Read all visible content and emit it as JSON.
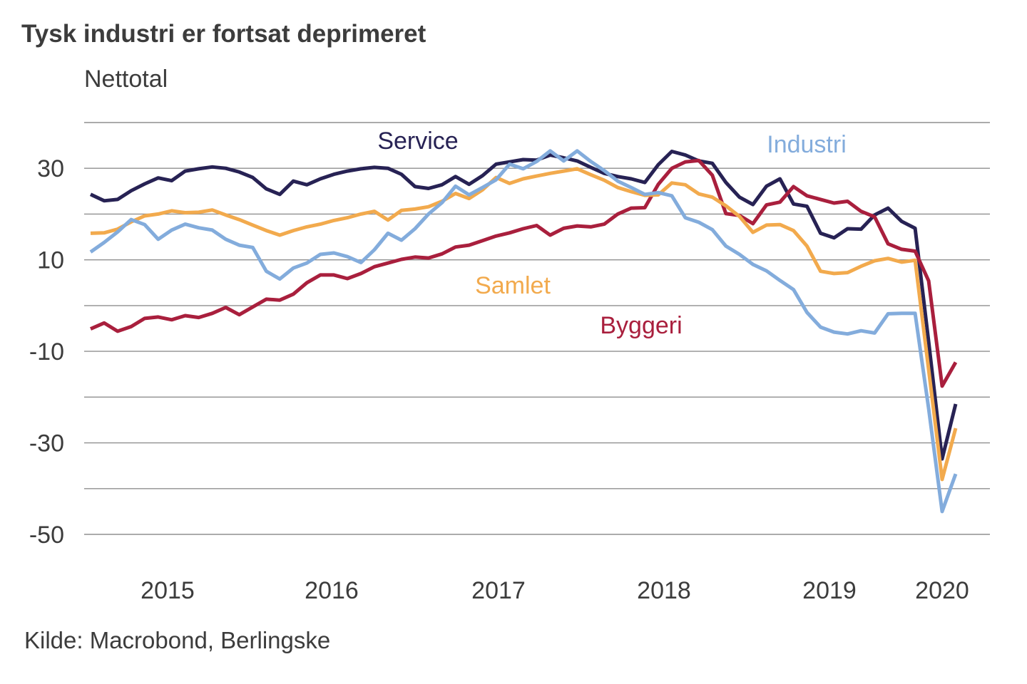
{
  "title": "Tysk industri er fortsat deprimeret",
  "subtitle": "Nettotal",
  "source": "Kilde: Macrobond, Berlingske",
  "colors": {
    "background": "#ffffff",
    "text": "#3c3c3c",
    "gridline": "#8f8f8f",
    "service": "#272254",
    "byggeri": "#a91f3d",
    "samlet": "#f2aa4d",
    "industri": "#83acdc"
  },
  "chart_data": {
    "type": "line",
    "title": "Tysk industri er fortsat deprimeret",
    "ylabel": "Nettotal",
    "frequency": "monthly",
    "x_start": "2015-01",
    "x_end": "2020-05",
    "ylim": [
      -50,
      40
    ],
    "grid": "horizontal lines every 10 units from 40 down to -50",
    "legend_position": "inline labels beside lines",
    "y_tick_labels": [
      30,
      10,
      -10,
      -30,
      -50
    ],
    "x_tick_labels": [
      "2015",
      "2016",
      "2017",
      "2018",
      "2019",
      "2020"
    ],
    "series": [
      {
        "name": "Service",
        "color": "#272254",
        "values": [
          24.3,
          22.9,
          23.2,
          25.1,
          26.6,
          27.9,
          27.3,
          29.4,
          29.9,
          30.3,
          30.0,
          29.2,
          28.0,
          25.5,
          24.3,
          27.2,
          26.4,
          27.7,
          28.7,
          29.4,
          29.9,
          30.2,
          30.0,
          28.7,
          26.0,
          25.6,
          26.4,
          28.2,
          26.5,
          28.4,
          30.9,
          31.4,
          31.9,
          31.8,
          32.9,
          32.3,
          31.6,
          30.2,
          28.9,
          28.2,
          27.7,
          26.9,
          30.8,
          33.7,
          32.9,
          31.6,
          31.1,
          26.9,
          23.7,
          22.1,
          26.1,
          27.7,
          22.2,
          21.7,
          15.8,
          14.8,
          16.8,
          16.7,
          19.8,
          21.3,
          18.4,
          16.9,
          -7.9,
          -33.5,
          -21.5
        ]
      },
      {
        "name": "Byggeri",
        "color": "#a91f3d",
        "values": [
          -5.1,
          -3.8,
          -5.6,
          -4.6,
          -2.8,
          -2.5,
          -3.1,
          -2.2,
          -2.6,
          -1.7,
          -0.4,
          -2.0,
          -0.3,
          1.4,
          1.2,
          2.5,
          5.0,
          6.7,
          6.7,
          5.9,
          7.0,
          8.5,
          9.3,
          10.1,
          10.6,
          10.4,
          11.3,
          12.8,
          13.2,
          14.2,
          15.2,
          15.9,
          16.8,
          17.5,
          15.4,
          16.9,
          17.4,
          17.2,
          17.8,
          20.0,
          21.3,
          21.4,
          26.5,
          30.0,
          31.4,
          31.7,
          28.5,
          20.1,
          19.7,
          17.9,
          22.0,
          22.6,
          26.0,
          24.0,
          23.2,
          22.4,
          22.8,
          20.6,
          19.4,
          13.5,
          12.3,
          11.9,
          5.4,
          -17.6,
          -12.4
        ]
      },
      {
        "name": "Samlet",
        "color": "#f2aa4d",
        "values": [
          15.8,
          15.9,
          16.7,
          18.3,
          19.6,
          20.0,
          20.7,
          20.3,
          20.4,
          20.9,
          19.8,
          18.8,
          17.6,
          16.4,
          15.4,
          16.4,
          17.2,
          17.8,
          18.6,
          19.2,
          20.0,
          20.6,
          18.7,
          20.8,
          21.1,
          21.6,
          22.8,
          24.5,
          23.4,
          25.3,
          28.0,
          26.7,
          27.7,
          28.3,
          28.9,
          29.4,
          29.9,
          28.6,
          27.4,
          25.8,
          24.9,
          24.1,
          24.2,
          26.8,
          26.4,
          24.4,
          23.7,
          21.8,
          19.5,
          16.0,
          17.6,
          17.7,
          16.4,
          13.0,
          7.5,
          7.0,
          7.2,
          8.6,
          9.8,
          10.3,
          9.5,
          9.9,
          -14.0,
          -38.0,
          -26.8
        ]
      },
      {
        "name": "Industri",
        "color": "#83acdc",
        "values": [
          11.7,
          13.8,
          16.1,
          18.8,
          17.7,
          14.5,
          16.5,
          17.8,
          17.0,
          16.5,
          14.5,
          13.2,
          12.7,
          7.5,
          5.8,
          8.2,
          9.3,
          11.2,
          11.5,
          10.7,
          9.4,
          12.2,
          15.8,
          14.3,
          16.8,
          20.0,
          22.5,
          26.1,
          24.2,
          25.8,
          27.5,
          30.9,
          29.9,
          31.5,
          33.8,
          31.6,
          33.8,
          31.5,
          29.5,
          27.2,
          25.8,
          24.3,
          24.7,
          24.0,
          19.2,
          18.2,
          16.6,
          13.0,
          11.2,
          9.0,
          7.6,
          5.5,
          3.5,
          -1.5,
          -4.7,
          -5.8,
          -6.2,
          -5.5,
          -6.0,
          -1.8,
          -1.7,
          -1.7,
          -22.5,
          -45.0,
          -36.8
        ]
      }
    ]
  }
}
